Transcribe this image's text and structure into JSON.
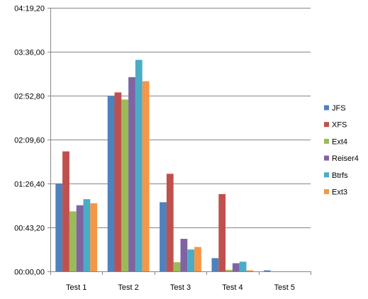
{
  "chart_data": {
    "type": "bar",
    "title": "",
    "xlabel": "",
    "ylabel": "",
    "categories": [
      "Test 1",
      "Test 2",
      "Test 3",
      "Test 4",
      "Test 5"
    ],
    "y_unit": "seconds",
    "y_tick_values": [
      0,
      43.2,
      86.4,
      129.6,
      172.8,
      216.0,
      259.2
    ],
    "y_tick_labels": [
      "00:00,00",
      "00:43,20",
      "01:26,40",
      "02:09,60",
      "02:52,80",
      "03:36,00",
      "04:19,20"
    ],
    "ylim": [
      0,
      259.2
    ],
    "grid": true,
    "legend_position": "right",
    "series": [
      {
        "name": "JFS",
        "color": "#4F81BD",
        "values": [
          86.5,
          172.5,
          68,
          13,
          1
        ]
      },
      {
        "name": "XFS",
        "color": "#C0504D",
        "values": [
          118,
          176,
          96,
          76,
          0
        ]
      },
      {
        "name": "Ext4",
        "color": "#9BBB59",
        "values": [
          59,
          169,
          9,
          1.5,
          0
        ]
      },
      {
        "name": "Reiser4",
        "color": "#8064A2",
        "values": [
          65,
          191,
          32,
          8,
          0
        ]
      },
      {
        "name": "Btrfs",
        "color": "#4BACC6",
        "values": [
          71,
          208,
          21.5,
          9.5,
          0
        ]
      },
      {
        "name": "Ext3",
        "color": "#F79646",
        "values": [
          67,
          187,
          24,
          1,
          0
        ]
      }
    ]
  }
}
